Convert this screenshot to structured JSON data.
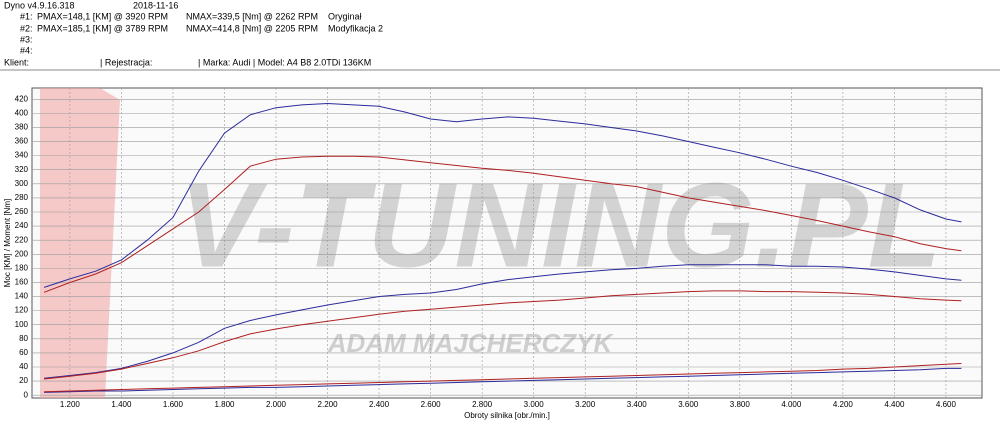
{
  "header": {
    "version": "Dyno v4.9.16.318",
    "date": "2018-11-16",
    "runs": [
      {
        "id": "#1:",
        "pmax": "PMAX=148,1 [KM] @ 3920 RPM",
        "nmax": "NMAX=339,5 [Nm] @ 2262 RPM",
        "label": "Oryginał"
      },
      {
        "id": "#2:",
        "pmax": "PMAX=185,1 [KM] @ 3789 RPM",
        "nmax": "NMAX=414,8 [Nm] @ 2205 RPM",
        "label": "Modyfikacja 2"
      },
      {
        "id": "#3:"
      },
      {
        "id": "#4:"
      }
    ],
    "client": "Klient:",
    "registration": "| Rejestracja:",
    "vehicle": "| Marka: Audi | Model: A4 B8 2.0TDi  136KM"
  },
  "chart_data": {
    "type": "line",
    "x_label": "Obroty silnika [obr./min.]",
    "y_label": "Moc [KM] / Moment [Nm]",
    "watermark": "V-TUNING.PL",
    "watermark_subtitle": "ADAM MAJCHERCZYK",
    "x": [
      1100,
      1200,
      1300,
      1400,
      1500,
      1600,
      1700,
      1800,
      1900,
      2000,
      2100,
      2200,
      2300,
      2400,
      2500,
      2600,
      2700,
      2800,
      2900,
      3000,
      3100,
      3200,
      3300,
      3400,
      3500,
      3600,
      3700,
      3800,
      3900,
      4000,
      4100,
      4200,
      4300,
      4400,
      4500,
      4600,
      4660
    ],
    "series": [
      {
        "color": "#2b2b9c",
        "values": [
          153,
          165,
          176,
          192,
          220,
          252,
          318,
          372,
          398,
          408,
          412,
          414,
          412,
          410,
          402,
          392,
          388,
          392,
          395,
          393,
          389,
          385,
          380,
          375,
          368,
          360,
          352,
          344,
          335,
          325,
          316,
          305,
          293,
          280,
          263,
          250,
          246
        ]
      },
      {
        "color": "#b02020",
        "values": [
          146,
          160,
          172,
          188,
          212,
          236,
          260,
          292,
          325,
          335,
          338,
          339,
          339,
          338,
          334,
          330,
          326,
          322,
          319,
          315,
          310,
          305,
          300,
          296,
          288,
          280,
          274,
          268,
          262,
          255,
          248,
          240,
          232,
          225,
          215,
          208,
          205
        ]
      },
      {
        "color": "#2b2b9c",
        "values": [
          24,
          28,
          32,
          38,
          48,
          60,
          75,
          95,
          106,
          114,
          121,
          128,
          134,
          140,
          143,
          145,
          150,
          158,
          164,
          168,
          172,
          175,
          178,
          180,
          183,
          185,
          185,
          185,
          185,
          183,
          183,
          182,
          179,
          175,
          170,
          165,
          163
        ]
      },
      {
        "color": "#b02020",
        "values": [
          23,
          27,
          31,
          37,
          45,
          53,
          63,
          76,
          87,
          94,
          100,
          105,
          110,
          115,
          119,
          122,
          125,
          128,
          131,
          133,
          135,
          138,
          141,
          143,
          145,
          147,
          148,
          148,
          147,
          147,
          146,
          145,
          143,
          140,
          137,
          135,
          134
        ]
      },
      {
        "color": "#2b2b9c",
        "values": [
          4,
          5,
          6,
          6,
          7,
          8,
          9,
          10,
          11,
          11,
          12,
          13,
          14,
          15,
          16,
          17,
          18,
          19,
          20,
          21,
          22,
          23,
          24,
          25,
          26,
          27,
          28,
          29,
          30,
          31,
          32,
          33,
          34,
          35,
          36,
          38,
          38
        ]
      },
      {
        "color": "#b02020",
        "values": [
          5,
          6,
          7,
          8,
          9,
          10,
          11,
          12,
          13,
          14,
          15,
          16,
          17,
          18,
          19,
          20,
          21,
          22,
          23,
          24,
          25,
          26,
          27,
          28,
          29,
          30,
          31,
          32,
          33,
          34,
          35,
          37,
          38,
          40,
          42,
          44,
          45
        ]
      }
    ],
    "xlim": [
      1053,
      4740
    ],
    "ylim": [
      -4,
      436
    ],
    "xticks": [
      {
        "value": 1200,
        "label": "1.200"
      },
      {
        "value": 1400,
        "label": "1.400"
      },
      {
        "value": 1600,
        "label": "1.600"
      },
      {
        "value": 1800,
        "label": "1.800"
      },
      {
        "value": 2000,
        "label": "2.000"
      },
      {
        "value": 2200,
        "label": "2.200"
      },
      {
        "value": 2400,
        "label": "2.400"
      },
      {
        "value": 2600,
        "label": "2.600"
      },
      {
        "value": 2800,
        "label": "2.800"
      },
      {
        "value": 3000,
        "label": "3.000"
      },
      {
        "value": 3200,
        "label": "3.200"
      },
      {
        "value": 3400,
        "label": "3.400"
      },
      {
        "value": 3600,
        "label": "3.600"
      },
      {
        "value": 3800,
        "label": "3.800"
      },
      {
        "value": 4000,
        "label": "4.000"
      },
      {
        "value": 4200,
        "label": "4.200"
      },
      {
        "value": 4400,
        "label": "4.400"
      },
      {
        "value": 4600,
        "label": "4.600"
      }
    ],
    "yticks": [
      0,
      20,
      40,
      60,
      80,
      100,
      120,
      140,
      160,
      180,
      200,
      220,
      240,
      260,
      280,
      300,
      320,
      340,
      360,
      380,
      400,
      420
    ],
    "grid": true
  }
}
